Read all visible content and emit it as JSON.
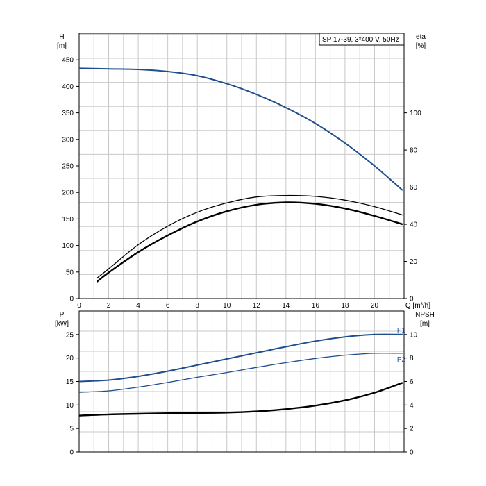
{
  "chart_data": [
    {
      "type": "line",
      "title": "SP 17-39, 3*400 V, 50Hz",
      "xlabel": "Q [m³/h]",
      "ylabel_left": [
        "H",
        "[m]"
      ],
      "ylabel_right": [
        "eta",
        "[%]"
      ],
      "xlim": [
        0,
        22
      ],
      "ylim_left": [
        0,
        500
      ],
      "ylim_right": [
        0,
        142.86
      ],
      "x_ticks": [
        "0",
        "2",
        "4",
        "6",
        "8",
        "10",
        "12",
        "14",
        "16",
        "18",
        "20",
        "Q [m³/h]"
      ],
      "y_ticks_left": [
        "0",
        "50",
        "100",
        "150",
        "200",
        "250",
        "300",
        "350",
        "400",
        "450"
      ],
      "y_ticks_right": [
        "0",
        "20",
        "40",
        "60",
        "80",
        "100"
      ],
      "grid": true,
      "series": [
        {
          "axis": "left",
          "color": "#1f4e8c",
          "x": [
            0,
            2,
            4,
            6,
            8,
            10,
            12,
            14,
            16,
            18,
            20,
            21.9
          ],
          "y": [
            434,
            433,
            432,
            428,
            420,
            405,
            385,
            360,
            330,
            293,
            250,
            204
          ]
        },
        {
          "axis": "right",
          "color": "#000000",
          "x": [
            1.2,
            2,
            4,
            6,
            8,
            10,
            12,
            14,
            16,
            18,
            20,
            21.9
          ],
          "y": [
            9,
            14,
            25,
            34,
            41.5,
            47,
            50.5,
            51.8,
            51,
            48.5,
            44.5,
            40
          ]
        },
        {
          "axis": "right",
          "color": "#000000",
          "x": [
            1.2,
            2,
            4,
            6,
            8,
            10,
            12,
            14,
            16,
            18,
            20,
            21.9
          ],
          "y": [
            11,
            16,
            29,
            39,
            46.5,
            51.5,
            54.7,
            55.5,
            55,
            53,
            49.5,
            45
          ]
        }
      ]
    },
    {
      "type": "line",
      "xlabel": "",
      "ylabel_left": [
        "P",
        "[kW]"
      ],
      "ylabel_right": [
        "NPSH",
        "[m]"
      ],
      "xlim": [
        0,
        22
      ],
      "ylim_left": [
        0,
        30
      ],
      "ylim_right": [
        0,
        12
      ],
      "y_ticks_left": [
        "0",
        "5",
        "10",
        "15",
        "20",
        "25"
      ],
      "y_ticks_right": [
        "0",
        "2",
        "4",
        "6",
        "8",
        "10"
      ],
      "grid": true,
      "series": [
        {
          "name": "P1",
          "axis": "left",
          "color": "#1f4e8c",
          "x": [
            0,
            2,
            4,
            6,
            8,
            10,
            12,
            14,
            16,
            18,
            20,
            21.9
          ],
          "y": [
            15,
            15.3,
            16.1,
            17.2,
            18.5,
            19.8,
            21.1,
            22.4,
            23.6,
            24.5,
            25,
            25
          ]
        },
        {
          "name": "P2",
          "axis": "left",
          "color": "#1f4e8c",
          "x": [
            0,
            2,
            4,
            6,
            8,
            10,
            12,
            14,
            16,
            18,
            20,
            21.9
          ],
          "y": [
            12.7,
            13,
            13.8,
            14.8,
            15.9,
            16.9,
            18,
            19,
            19.9,
            20.6,
            21,
            21
          ]
        },
        {
          "axis": "right",
          "color": "#000000",
          "x": [
            0,
            2,
            4,
            6,
            8,
            10,
            12,
            14,
            16,
            18,
            20,
            21.9
          ],
          "y": [
            3.1,
            3.2,
            3.25,
            3.3,
            3.32,
            3.35,
            3.45,
            3.65,
            3.95,
            4.4,
            5.05,
            5.9
          ]
        }
      ]
    }
  ]
}
